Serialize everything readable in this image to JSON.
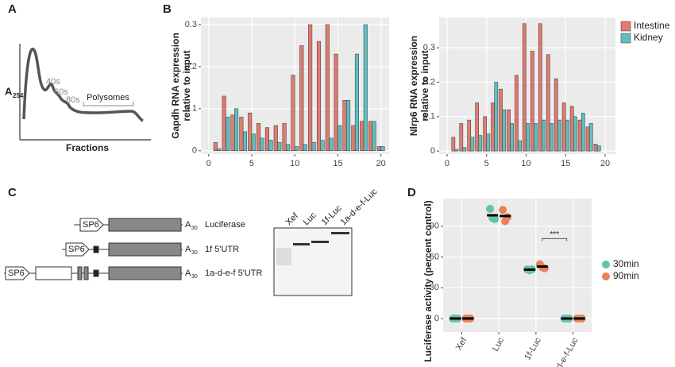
{
  "panel_labels": [
    "A",
    "B",
    "C",
    "D"
  ],
  "panel_a": {
    "ylabel": {
      "text": "A",
      "sub": "254"
    },
    "xlabel": "Fractions",
    "peaks": [
      "40s",
      "60s",
      "80s"
    ],
    "region": "Polysomes"
  },
  "panel_c": {
    "promoter": "SP6",
    "tail": {
      "text": "A",
      "sub": "30"
    },
    "constructs": [
      "Luciferase",
      "1f 5'UTR",
      "1a-d-e-f 5'UTR"
    ],
    "gel_lanes": [
      "Xef",
      "Luc",
      "1f-Luc",
      "1a-d-e-f-Luc"
    ]
  },
  "chart_data": [
    {
      "type": "bar",
      "ylabel": [
        "Gapdh RNA expression",
        "relative to input"
      ],
      "x": [
        1,
        2,
        3,
        4,
        5,
        6,
        7,
        8,
        9,
        10,
        11,
        12,
        13,
        14,
        15,
        16,
        17,
        18,
        19,
        20
      ],
      "series": [
        {
          "name": "Intestine",
          "color": "#e07b6f",
          "values": [
            0.02,
            0.13,
            0.085,
            0.08,
            0.09,
            0.065,
            0.055,
            0.06,
            0.065,
            0.18,
            0.25,
            0.3,
            0.26,
            0.3,
            0.23,
            0.12,
            0.06,
            0.07,
            0.07,
            0.01
          ]
        },
        {
          "name": "Kidney",
          "color": "#5fbfbf",
          "values": [
            0.005,
            0.08,
            0.1,
            0.045,
            0.04,
            0.03,
            0.025,
            0.02,
            0.015,
            0.01,
            0.015,
            0.02,
            0.025,
            0.03,
            0.06,
            0.12,
            0.23,
            0.3,
            0.07,
            0.01
          ]
        }
      ],
      "xlim": [
        -0.9,
        20.95
      ],
      "xticks": [
        0,
        5,
        10,
        15,
        20
      ],
      "ylim": [
        -0.008,
        0.317
      ],
      "yticks": [
        0,
        0.1,
        0.2,
        0.3
      ],
      "grid": true,
      "legend": "right"
    },
    {
      "type": "bar",
      "ylabel": [
        "Nlrp6 RNA expression",
        "relative to input"
      ],
      "x": [
        1,
        2,
        3,
        4,
        5,
        6,
        7,
        8,
        9,
        10,
        11,
        12,
        13,
        14,
        15,
        16,
        17,
        18,
        19
      ],
      "series": [
        {
          "color": "#e07b6f",
          "values": [
            0.04,
            0.08,
            0.09,
            0.14,
            0.1,
            0.14,
            0.18,
            0.12,
            0.22,
            0.37,
            0.29,
            0.37,
            0.28,
            0.21,
            0.14,
            0.13,
            0.09,
            0.07,
            0.02
          ]
        },
        {
          "color": "#5fbfbf",
          "values": [
            0.005,
            0.01,
            0.04,
            0.045,
            0.05,
            0.2,
            0.12,
            0.08,
            0.03,
            0.08,
            0.08,
            0.09,
            0.08,
            0.09,
            0.09,
            0.1,
            0.11,
            0.08,
            0.015
          ]
        }
      ],
      "xlim": [
        -1.0,
        21.3
      ],
      "xticks": [
        0,
        5,
        10,
        15,
        20
      ],
      "ylim": [
        -0.009,
        0.388
      ],
      "yticks": [
        0,
        0.1,
        0.2,
        0.3
      ],
      "grid": true
    },
    {
      "type": "dot",
      "ylabel": "Luciferase activity (percent control)",
      "categories": [
        "Xef",
        "Luc",
        "1f-Luc",
        "1a-d-e-f-Luc"
      ],
      "series": [
        {
          "name": "30min",
          "color": "#66c2a5",
          "values": [
            [
              0,
              0,
              0
            ],
            [
              107,
              98,
              97
            ],
            [
              48,
              47,
              48
            ],
            [
              0,
              0,
              0
            ]
          ],
          "means": [
            0,
            100.7,
            47.7,
            0
          ]
        },
        {
          "name": "90min",
          "color": "#e8825a",
          "values": [
            [
              0,
              0,
              0
            ],
            [
              106,
              95,
              99
            ],
            [
              53,
              50,
              49
            ],
            [
              0,
              0,
              0
            ]
          ],
          "means": [
            0,
            100,
            50.7,
            0
          ]
        }
      ],
      "ylim": [
        -13.2,
        117
      ],
      "yticks": [
        0,
        30,
        60,
        90
      ],
      "annotation": "***",
      "grid": true,
      "legend": "right"
    }
  ]
}
